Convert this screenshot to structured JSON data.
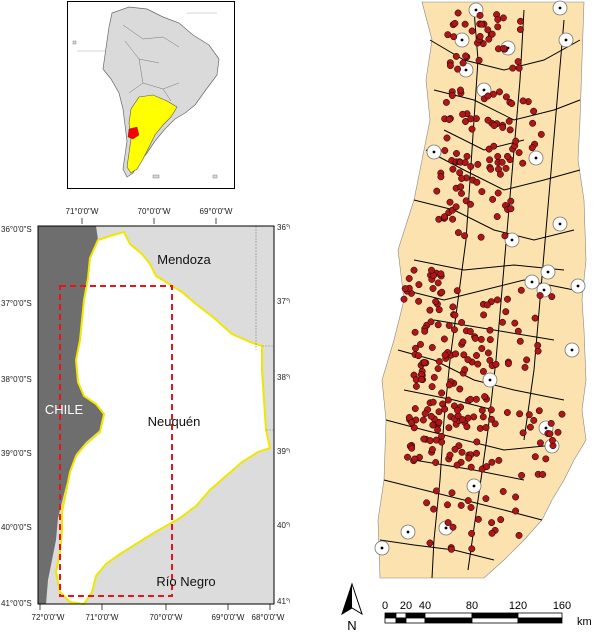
{
  "inset": {
    "highlight_color": "#ffff00",
    "focus_color": "#ff0000"
  },
  "locator": {
    "top_lon_labels": [
      "71°0'0\"W",
      "70°0'0\"W",
      "69°0'0\"W"
    ],
    "bottom_lon_labels": [
      "72°0'0\"W",
      "71°0'0\"W",
      "70°0'0\"W",
      "69°0'0\"W",
      "68°0'0\"W"
    ],
    "left_lat_labels": [
      "36°0'0\"S",
      "37°0'0\"S",
      "38°0'0\"S",
      "39°0'0\"S",
      "40°0'0\"S",
      "41°0'0\"S"
    ],
    "right_lat_labels": [
      "36°0'0\"S",
      "37°0'0\"S",
      "38°0'0\"S",
      "39°0'0\"S",
      "40°0'0\"S",
      "41°0'0\"S"
    ],
    "chile_label": "CHILE",
    "mendoza_label": "Mendoza",
    "neuquen_label": "Neuquén",
    "rio_negro_label": "Río Negro",
    "chile_color": "#6e6e6e",
    "neighbor_color": "#dcdcdc",
    "province_outline_color": "#f0e600",
    "study_area_color": "#e8141c"
  },
  "detail_map": {
    "land_color": "#fbe2ae",
    "site_color": "#b01518",
    "road_color": "#000000"
  },
  "scale_bar": {
    "labels": [
      "0",
      "20",
      "40",
      "80",
      "120",
      "160"
    ],
    "unit": "km"
  },
  "north_arrow": {
    "label": "N"
  }
}
